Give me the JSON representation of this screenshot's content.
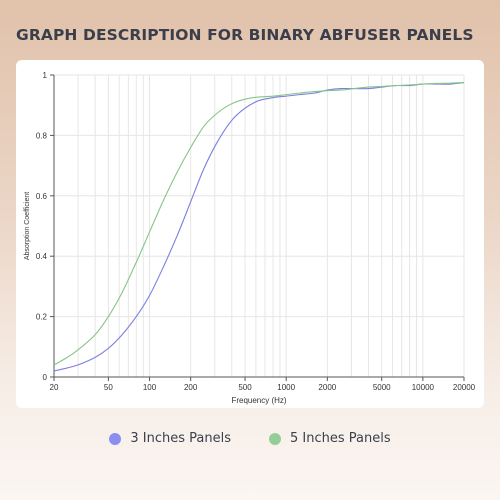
{
  "page_title": "GRAPH DESCRIPTION FOR BINARY ABFUSER PANELS",
  "chart_data": {
    "type": "line",
    "title": "",
    "xlabel": "Frequency (Hz)",
    "ylabel": "Absorption Coefficient",
    "xscale": "log",
    "xlim": [
      20,
      20000
    ],
    "ylim": [
      0,
      1
    ],
    "x_ticks": [
      20,
      50,
      100,
      200,
      500,
      1000,
      2000,
      5000,
      10000,
      20000
    ],
    "y_ticks": [
      0,
      0.2,
      0.4,
      0.6,
      0.8,
      1
    ],
    "y_tick_labels": [
      "0",
      "0.2",
      "0.4",
      "0.6",
      "0.8",
      "1"
    ],
    "grid": true,
    "legend_position": "bottom-center",
    "series": [
      {
        "name": "3 Inches Panels",
        "color": "#7b7fe0",
        "x": [
          20,
          25,
          30,
          40,
          50,
          63,
          80,
          100,
          125,
          160,
          200,
          250,
          315,
          400,
          500,
          630,
          800,
          1000,
          1250,
          1600,
          2000,
          2500,
          3150,
          4000,
          5000,
          6300,
          8000,
          10000,
          12500,
          16000,
          20000
        ],
        "y": [
          0.02,
          0.03,
          0.04,
          0.065,
          0.095,
          0.14,
          0.2,
          0.27,
          0.36,
          0.47,
          0.58,
          0.69,
          0.78,
          0.85,
          0.89,
          0.915,
          0.925,
          0.93,
          0.935,
          0.94,
          0.95,
          0.955,
          0.955,
          0.955,
          0.96,
          0.965,
          0.965,
          0.97,
          0.97,
          0.97,
          0.975
        ]
      },
      {
        "name": "5 Inches Panels",
        "color": "#86c489",
        "x": [
          20,
          25,
          30,
          40,
          50,
          63,
          80,
          100,
          125,
          160,
          200,
          250,
          315,
          400,
          500,
          630,
          800,
          1000,
          1250,
          1600,
          2000,
          2500,
          3150,
          4000,
          5000,
          6300,
          8000,
          10000,
          12500,
          16000,
          20000
        ],
        "y": [
          0.04,
          0.065,
          0.09,
          0.14,
          0.2,
          0.28,
          0.38,
          0.48,
          0.58,
          0.68,
          0.76,
          0.83,
          0.875,
          0.905,
          0.92,
          0.927,
          0.93,
          0.935,
          0.94,
          0.945,
          0.948,
          0.95,
          0.955,
          0.96,
          0.962,
          0.965,
          0.967,
          0.97,
          0.972,
          0.973,
          0.975
        ]
      }
    ]
  },
  "legend": [
    {
      "label": "3 Inches Panels",
      "color": "#8b8df0"
    },
    {
      "label": "5 Inches Panels",
      "color": "#95cd96"
    }
  ]
}
